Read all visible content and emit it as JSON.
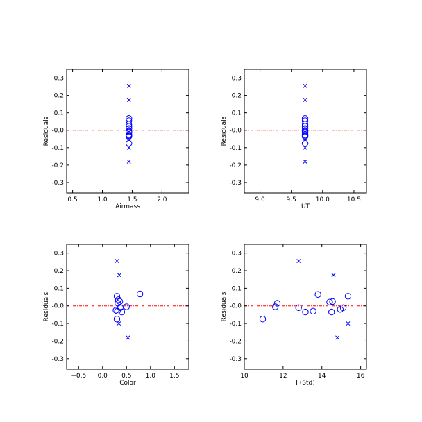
{
  "colors": {
    "marker": "#0000ff",
    "reference_line": "#ff0000",
    "frame": "#000000"
  },
  "chart_data": [
    {
      "type": "scatter",
      "xlabel": "Airmass",
      "ylabel": "Residuals",
      "xlim": [
        0.4,
        2.45
      ],
      "ylim": [
        -0.36,
        0.35
      ],
      "xticks": [
        {
          "v": 0.5,
          "label": "0.5"
        },
        {
          "v": 1.0,
          "label": "1.0"
        },
        {
          "v": 1.5,
          "label": "1.5"
        },
        {
          "v": 2.0,
          "label": "2.0"
        }
      ],
      "yticks": [
        {
          "v": 0.3,
          "label": "0.3"
        },
        {
          "v": 0.2,
          "label": "0.2"
        },
        {
          "v": 0.1,
          "label": "0.1"
        },
        {
          "v": 0.0,
          "label": "-0.0"
        },
        {
          "v": -0.1,
          "label": "-0.1"
        },
        {
          "v": -0.2,
          "label": "-0.2"
        },
        {
          "v": -0.3,
          "label": "-0.3"
        }
      ],
      "reference_y": 0.0,
      "circles": [
        {
          "x": 1.445,
          "y": 0.068
        },
        {
          "x": 1.445,
          "y": 0.055
        },
        {
          "x": 1.445,
          "y": 0.035
        },
        {
          "x": 1.445,
          "y": 0.022
        },
        {
          "x": 1.445,
          "y": 0.01
        },
        {
          "x": 1.445,
          "y": -0.005
        },
        {
          "x": 1.445,
          "y": -0.01
        },
        {
          "x": 1.445,
          "y": -0.025
        },
        {
          "x": 1.445,
          "y": -0.03
        },
        {
          "x": 1.445,
          "y": -0.035
        },
        {
          "x": 1.445,
          "y": -0.075
        }
      ],
      "crosses": [
        {
          "x": 1.445,
          "y": 0.255
        },
        {
          "x": 1.445,
          "y": 0.175
        },
        {
          "x": 1.445,
          "y": -0.1
        },
        {
          "x": 1.445,
          "y": -0.18
        }
      ]
    },
    {
      "type": "scatter",
      "xlabel": "UT",
      "ylabel": "Residuals",
      "xlim": [
        8.75,
        10.7
      ],
      "ylim": [
        -0.36,
        0.35
      ],
      "xticks": [
        {
          "v": 9.0,
          "label": "9.0"
        },
        {
          "v": 9.5,
          "label": "9.5"
        },
        {
          "v": 10.0,
          "label": "10.0"
        },
        {
          "v": 10.5,
          "label": "10.5"
        }
      ],
      "yticks": [
        {
          "v": 0.3,
          "label": "0.3"
        },
        {
          "v": 0.2,
          "label": "0.2"
        },
        {
          "v": 0.1,
          "label": "0.1"
        },
        {
          "v": 0.0,
          "label": "-0.0"
        },
        {
          "v": -0.1,
          "label": "-0.1"
        },
        {
          "v": -0.2,
          "label": "-0.2"
        },
        {
          "v": -0.3,
          "label": "-0.3"
        }
      ],
      "reference_y": 0.0,
      "circles": [
        {
          "x": 9.72,
          "y": 0.068
        },
        {
          "x": 9.72,
          "y": 0.055
        },
        {
          "x": 9.72,
          "y": 0.035
        },
        {
          "x": 9.72,
          "y": 0.022
        },
        {
          "x": 9.72,
          "y": 0.01
        },
        {
          "x": 9.72,
          "y": -0.005
        },
        {
          "x": 9.72,
          "y": -0.01
        },
        {
          "x": 9.72,
          "y": -0.025
        },
        {
          "x": 9.72,
          "y": -0.03
        },
        {
          "x": 9.72,
          "y": -0.035
        },
        {
          "x": 9.72,
          "y": -0.075
        }
      ],
      "crosses": [
        {
          "x": 9.72,
          "y": 0.255
        },
        {
          "x": 9.72,
          "y": 0.175
        },
        {
          "x": 9.72,
          "y": -0.1
        },
        {
          "x": 9.72,
          "y": -0.18
        }
      ]
    },
    {
      "type": "scatter",
      "xlabel": "Color",
      "ylabel": "Residuals",
      "xlim": [
        -0.75,
        1.8
      ],
      "ylim": [
        -0.36,
        0.35
      ],
      "xticks": [
        {
          "v": -0.5,
          "label": "−0.5"
        },
        {
          "v": 0.0,
          "label": "0.0"
        },
        {
          "v": 0.5,
          "label": "0.5"
        },
        {
          "v": 1.0,
          "label": "1.0"
        },
        {
          "v": 1.5,
          "label": "1.5"
        }
      ],
      "yticks": [
        {
          "v": 0.3,
          "label": "0.3"
        },
        {
          "v": 0.2,
          "label": "0.2"
        },
        {
          "v": 0.1,
          "label": "0.1"
        },
        {
          "v": 0.0,
          "label": "-0.0"
        },
        {
          "v": -0.1,
          "label": "-0.1"
        },
        {
          "v": -0.2,
          "label": "-0.2"
        },
        {
          "v": -0.3,
          "label": "-0.3"
        }
      ],
      "reference_y": 0.0,
      "circles": [
        {
          "x": 0.3,
          "y": 0.055
        },
        {
          "x": 0.33,
          "y": 0.035
        },
        {
          "x": 0.36,
          "y": 0.025
        },
        {
          "x": 0.32,
          "y": 0.015
        },
        {
          "x": 0.37,
          "y": -0.01
        },
        {
          "x": 0.28,
          "y": -0.025
        },
        {
          "x": 0.31,
          "y": -0.03
        },
        {
          "x": 0.4,
          "y": -0.035
        },
        {
          "x": 0.5,
          "y": -0.005
        },
        {
          "x": 0.3,
          "y": -0.075
        },
        {
          "x": 0.78,
          "y": 0.068
        }
      ],
      "crosses": [
        {
          "x": 0.3,
          "y": 0.255
        },
        {
          "x": 0.35,
          "y": 0.175
        },
        {
          "x": 0.34,
          "y": -0.1
        },
        {
          "x": 0.53,
          "y": -0.18
        }
      ]
    },
    {
      "type": "scatter",
      "xlabel": "I (Std)",
      "ylabel": "Residuals",
      "xlim": [
        10.0,
        16.3
      ],
      "ylim": [
        -0.36,
        0.35
      ],
      "xticks": [
        {
          "v": 10,
          "label": "10"
        },
        {
          "v": 12,
          "label": "12"
        },
        {
          "v": 14,
          "label": "14"
        },
        {
          "v": 16,
          "label": "16"
        }
      ],
      "yticks": [
        {
          "v": 0.3,
          "label": "0.3"
        },
        {
          "v": 0.2,
          "label": "0.2"
        },
        {
          "v": 0.1,
          "label": "0.1"
        },
        {
          "v": 0.0,
          "label": "-0.0"
        },
        {
          "v": -0.1,
          "label": "-0.1"
        },
        {
          "v": -0.2,
          "label": "-0.2"
        },
        {
          "v": -0.3,
          "label": "-0.3"
        }
      ],
      "reference_y": 0.0,
      "circles": [
        {
          "x": 10.95,
          "y": -0.075
        },
        {
          "x": 11.6,
          "y": -0.005
        },
        {
          "x": 11.7,
          "y": 0.015
        },
        {
          "x": 12.8,
          "y": -0.01
        },
        {
          "x": 13.15,
          "y": -0.035
        },
        {
          "x": 13.55,
          "y": -0.03
        },
        {
          "x": 13.8,
          "y": 0.065
        },
        {
          "x": 14.4,
          "y": 0.022
        },
        {
          "x": 14.55,
          "y": 0.025
        },
        {
          "x": 14.5,
          "y": -0.035
        },
        {
          "x": 14.95,
          "y": -0.02
        },
        {
          "x": 15.1,
          "y": -0.01
        },
        {
          "x": 15.35,
          "y": 0.055
        }
      ],
      "crosses": [
        {
          "x": 12.8,
          "y": 0.255
        },
        {
          "x": 14.6,
          "y": 0.175
        },
        {
          "x": 14.8,
          "y": -0.18
        },
        {
          "x": 15.35,
          "y": -0.1
        }
      ]
    }
  ]
}
